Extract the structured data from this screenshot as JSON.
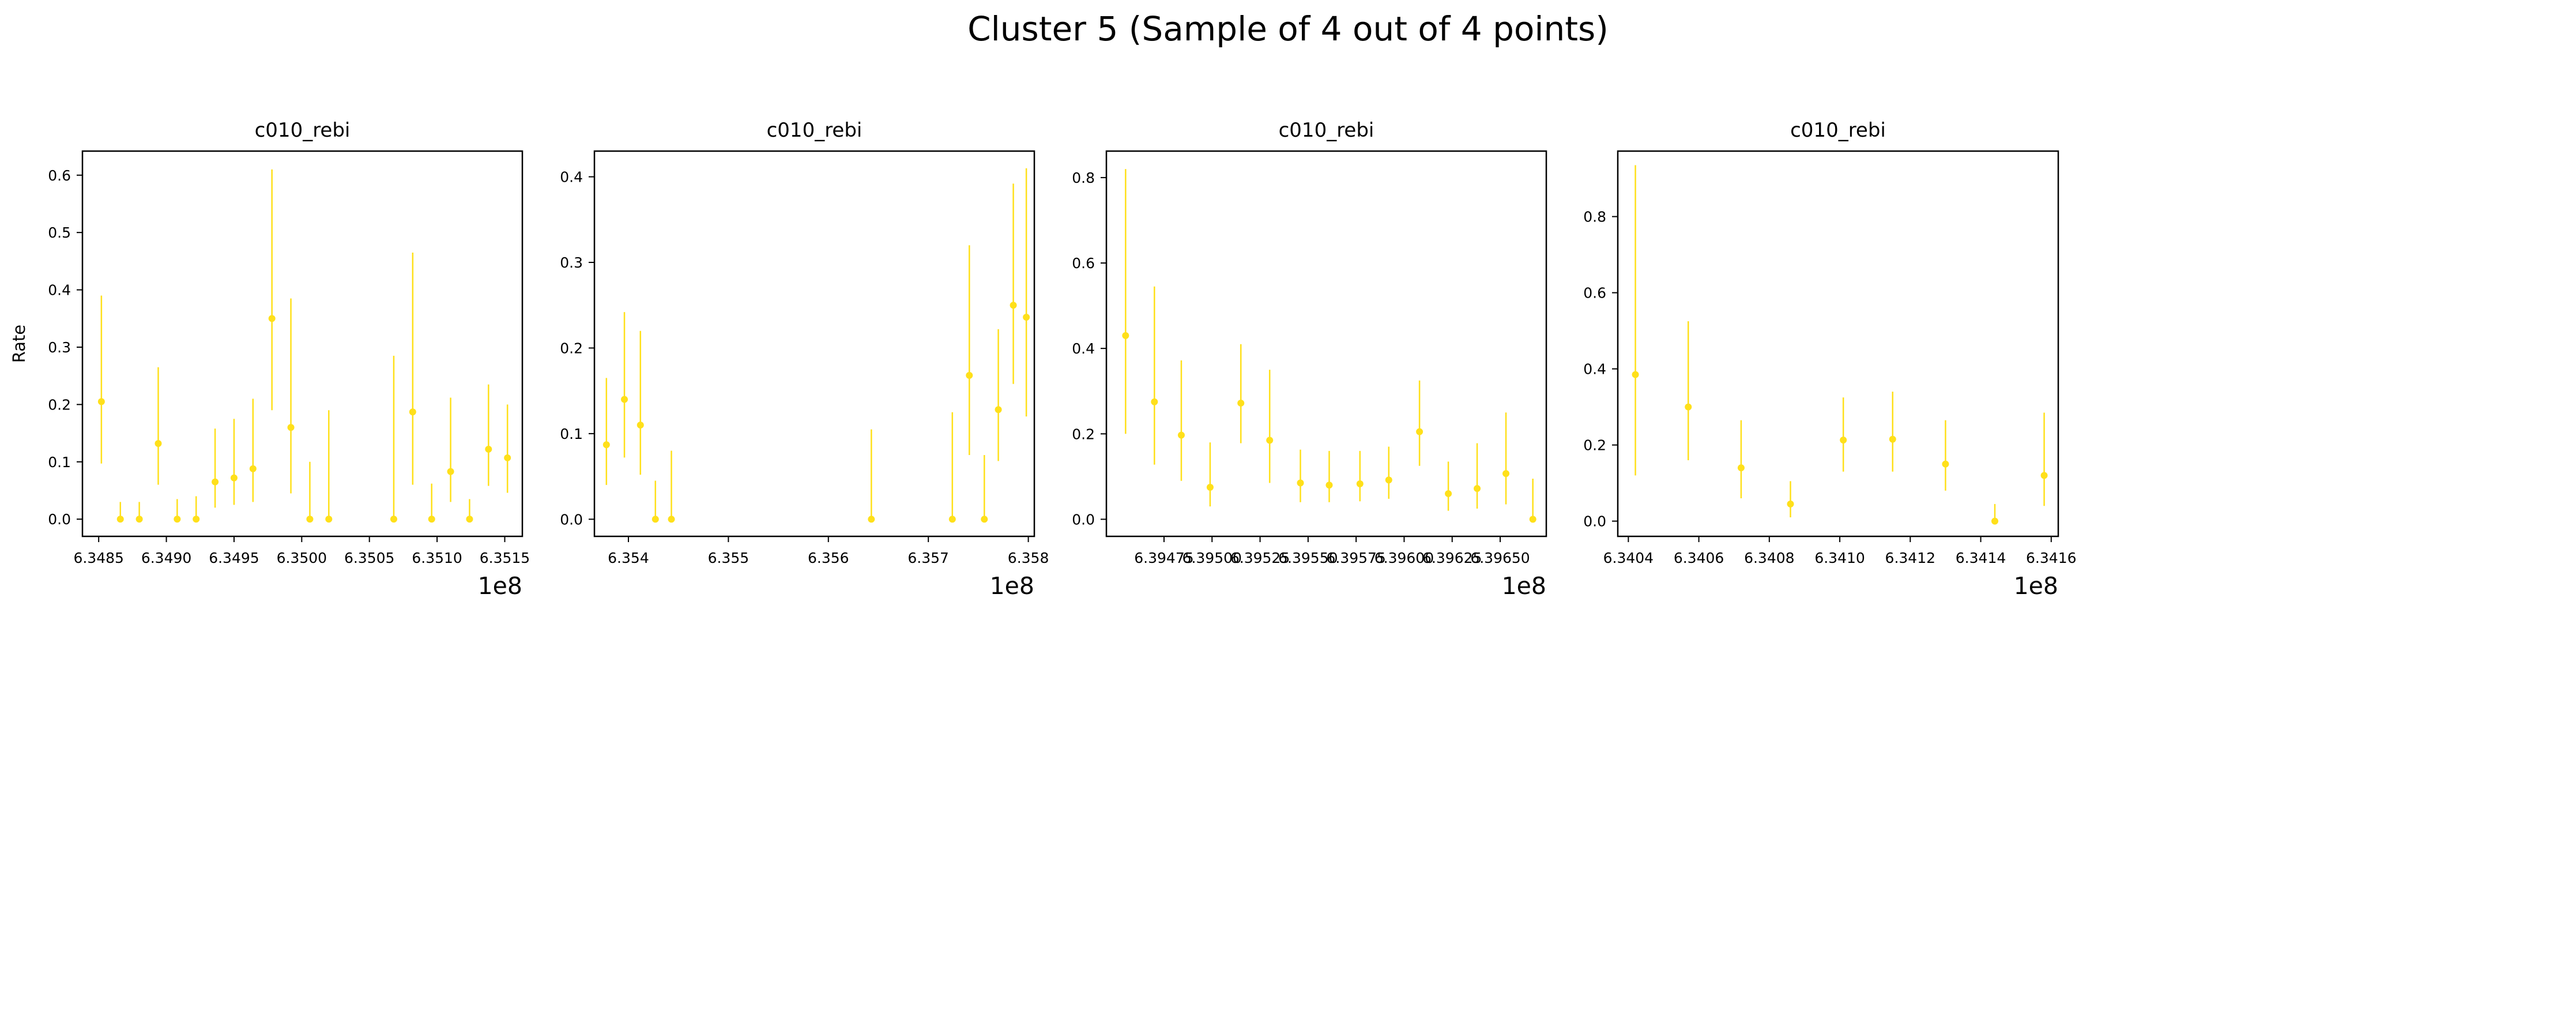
{
  "figure": {
    "title": "Cluster 5 (Sample of 4 out of 4 points)"
  },
  "colors": {
    "series": "#FFE01A",
    "axis": "#000000"
  },
  "chart_data": [
    {
      "type": "scatter",
      "title": "c010_rebi",
      "ylabel": "Rate",
      "xlabel": "",
      "offset_text": "1e8",
      "xlim": [
        6.34838,
        6.35163
      ],
      "ylim": [
        -0.03,
        0.642
      ],
      "xticks": [
        6.3485,
        6.349,
        6.3495,
        6.35,
        6.3505,
        6.351,
        6.3515
      ],
      "xtick_labels": [
        "6.3485",
        "6.3490",
        "6.3495",
        "6.3500",
        "6.3505",
        "6.3510",
        "6.3515"
      ],
      "yticks": [
        0.0,
        0.1,
        0.2,
        0.3,
        0.4,
        0.5,
        0.6
      ],
      "ytick_labels": [
        "0.0",
        "0.1",
        "0.2",
        "0.3",
        "0.4",
        "0.5",
        "0.6"
      ],
      "points": [
        {
          "x": 6.34852,
          "y": 0.205,
          "ylo": 0.097,
          "yhi": 0.39
        },
        {
          "x": 6.34866,
          "y": 0.0,
          "ylo": 0.0,
          "yhi": 0.03
        },
        {
          "x": 6.3488,
          "y": 0.0,
          "ylo": 0.0,
          "yhi": 0.03
        },
        {
          "x": 6.34894,
          "y": 0.132,
          "ylo": 0.06,
          "yhi": 0.265
        },
        {
          "x": 6.34908,
          "y": 0.0,
          "ylo": 0.0,
          "yhi": 0.035
        },
        {
          "x": 6.34922,
          "y": 0.0,
          "ylo": 0.0,
          "yhi": 0.04
        },
        {
          "x": 6.34936,
          "y": 0.065,
          "ylo": 0.02,
          "yhi": 0.158
        },
        {
          "x": 6.3495,
          "y": 0.072,
          "ylo": 0.025,
          "yhi": 0.175
        },
        {
          "x": 6.34964,
          "y": 0.088,
          "ylo": 0.03,
          "yhi": 0.21
        },
        {
          "x": 6.34978,
          "y": 0.35,
          "ylo": 0.19,
          "yhi": 0.61
        },
        {
          "x": 6.34992,
          "y": 0.16,
          "ylo": 0.045,
          "yhi": 0.385
        },
        {
          "x": 6.35006,
          "y": 0.0,
          "ylo": 0.0,
          "yhi": 0.1
        },
        {
          "x": 6.3502,
          "y": 0.0,
          "ylo": 0.0,
          "yhi": 0.19
        },
        {
          "x": 6.35068,
          "y": 0.0,
          "ylo": 0.0,
          "yhi": 0.285
        },
        {
          "x": 6.35082,
          "y": 0.187,
          "ylo": 0.06,
          "yhi": 0.465
        },
        {
          "x": 6.35096,
          "y": 0.0,
          "ylo": 0.0,
          "yhi": 0.062
        },
        {
          "x": 6.3511,
          "y": 0.083,
          "ylo": 0.03,
          "yhi": 0.212
        },
        {
          "x": 6.35124,
          "y": 0.0,
          "ylo": 0.0,
          "yhi": 0.035
        },
        {
          "x": 6.35138,
          "y": 0.122,
          "ylo": 0.058,
          "yhi": 0.235
        },
        {
          "x": 6.35152,
          "y": 0.107,
          "ylo": 0.046,
          "yhi": 0.2
        }
      ]
    },
    {
      "type": "scatter",
      "title": "c010_rebi",
      "ylabel": "",
      "xlabel": "",
      "offset_text": "1e8",
      "xlim": [
        6.35366,
        6.35806
      ],
      "ylim": [
        -0.02,
        0.43
      ],
      "xticks": [
        6.354,
        6.355,
        6.356,
        6.357,
        6.358
      ],
      "xtick_labels": [
        "6.354",
        "6.355",
        "6.356",
        "6.357",
        "6.358"
      ],
      "yticks": [
        0.0,
        0.1,
        0.2,
        0.3,
        0.4
      ],
      "ytick_labels": [
        "0.0",
        "0.1",
        "0.2",
        "0.3",
        "0.4"
      ],
      "points": [
        {
          "x": 6.35378,
          "y": 0.087,
          "ylo": 0.04,
          "yhi": 0.165
        },
        {
          "x": 6.35396,
          "y": 0.14,
          "ylo": 0.072,
          "yhi": 0.242
        },
        {
          "x": 6.35412,
          "y": 0.11,
          "ylo": 0.052,
          "yhi": 0.22
        },
        {
          "x": 6.35427,
          "y": 0.0,
          "ylo": 0.0,
          "yhi": 0.045
        },
        {
          "x": 6.35443,
          "y": 0.0,
          "ylo": 0.0,
          "yhi": 0.08
        },
        {
          "x": 6.35643,
          "y": 0.0,
          "ylo": 0.0,
          "yhi": 0.105
        },
        {
          "x": 6.35724,
          "y": 0.0,
          "ylo": 0.0,
          "yhi": 0.125
        },
        {
          "x": 6.35741,
          "y": 0.168,
          "ylo": 0.075,
          "yhi": 0.32
        },
        {
          "x": 6.35756,
          "y": 0.0,
          "ylo": 0.0,
          "yhi": 0.075
        },
        {
          "x": 6.3577,
          "y": 0.128,
          "ylo": 0.068,
          "yhi": 0.222
        },
        {
          "x": 6.35785,
          "y": 0.25,
          "ylo": 0.158,
          "yhi": 0.392
        },
        {
          "x": 6.35798,
          "y": 0.236,
          "ylo": 0.12,
          "yhi": 0.41
        }
      ]
    },
    {
      "type": "scatter",
      "title": "c010_rebi",
      "ylabel": "",
      "xlabel": "",
      "offset_text": "1e8",
      "xlim": [
        6.39445,
        6.39674
      ],
      "ylim": [
        -0.04,
        0.862
      ],
      "xticks": [
        6.39475,
        6.395,
        6.39525,
        6.3955,
        6.39575,
        6.396,
        6.39625,
        6.3965
      ],
      "xtick_labels": [
        "6.39475",
        "6.39500",
        "6.39525",
        "6.39550",
        "6.39575",
        "6.39600",
        "6.39625",
        "6.39650"
      ],
      "yticks": [
        0.0,
        0.2,
        0.4,
        0.6,
        0.8
      ],
      "ytick_labels": [
        "0.0",
        "0.2",
        "0.4",
        "0.6",
        "0.8"
      ],
      "points": [
        {
          "x": 6.39455,
          "y": 0.43,
          "ylo": 0.2,
          "yhi": 0.82
        },
        {
          "x": 6.3947,
          "y": 0.275,
          "ylo": 0.128,
          "yhi": 0.545
        },
        {
          "x": 6.39484,
          "y": 0.197,
          "ylo": 0.09,
          "yhi": 0.372
        },
        {
          "x": 6.39499,
          "y": 0.075,
          "ylo": 0.03,
          "yhi": 0.18
        },
        {
          "x": 6.39515,
          "y": 0.272,
          "ylo": 0.178,
          "yhi": 0.41
        },
        {
          "x": 6.3953,
          "y": 0.185,
          "ylo": 0.085,
          "yhi": 0.35
        },
        {
          "x": 6.39546,
          "y": 0.085,
          "ylo": 0.04,
          "yhi": 0.163
        },
        {
          "x": 6.39561,
          "y": 0.08,
          "ylo": 0.04,
          "yhi": 0.16
        },
        {
          "x": 6.39577,
          "y": 0.083,
          "ylo": 0.042,
          "yhi": 0.16
        },
        {
          "x": 6.39592,
          "y": 0.092,
          "ylo": 0.048,
          "yhi": 0.17
        },
        {
          "x": 6.39608,
          "y": 0.205,
          "ylo": 0.125,
          "yhi": 0.325
        },
        {
          "x": 6.39623,
          "y": 0.06,
          "ylo": 0.02,
          "yhi": 0.135
        },
        {
          "x": 6.39638,
          "y": 0.072,
          "ylo": 0.025,
          "yhi": 0.178
        },
        {
          "x": 6.39653,
          "y": 0.107,
          "ylo": 0.035,
          "yhi": 0.25
        },
        {
          "x": 6.39667,
          "y": 0.0,
          "ylo": 0.0,
          "yhi": 0.095
        }
      ]
    },
    {
      "type": "scatter",
      "title": "c010_rebi",
      "ylabel": "",
      "xlabel": "",
      "offset_text": "1e8",
      "xlim": [
        6.34037,
        6.34162
      ],
      "ylim": [
        -0.04,
        0.972
      ],
      "xticks": [
        6.3404,
        6.3406,
        6.3408,
        6.341,
        6.3412,
        6.3414,
        6.3416
      ],
      "xtick_labels": [
        "6.3404",
        "6.3406",
        "6.3408",
        "6.3410",
        "6.3412",
        "6.3414",
        "6.3416"
      ],
      "yticks": [
        0.0,
        0.2,
        0.4,
        0.6,
        0.8
      ],
      "ytick_labels": [
        "0.0",
        "0.2",
        "0.4",
        "0.6",
        "0.8"
      ],
      "points": [
        {
          "x": 6.34042,
          "y": 0.385,
          "ylo": 0.12,
          "yhi": 0.935
        },
        {
          "x": 6.34057,
          "y": 0.3,
          "ylo": 0.16,
          "yhi": 0.525
        },
        {
          "x": 6.34072,
          "y": 0.14,
          "ylo": 0.06,
          "yhi": 0.265
        },
        {
          "x": 6.34086,
          "y": 0.045,
          "ylo": 0.01,
          "yhi": 0.105
        },
        {
          "x": 6.34101,
          "y": 0.213,
          "ylo": 0.13,
          "yhi": 0.325
        },
        {
          "x": 6.34115,
          "y": 0.215,
          "ylo": 0.13,
          "yhi": 0.34
        },
        {
          "x": 6.3413,
          "y": 0.15,
          "ylo": 0.08,
          "yhi": 0.265
        },
        {
          "x": 6.34144,
          "y": 0.0,
          "ylo": 0.0,
          "yhi": 0.045
        },
        {
          "x": 6.34158,
          "y": 0.12,
          "ylo": 0.04,
          "yhi": 0.285
        }
      ]
    }
  ]
}
